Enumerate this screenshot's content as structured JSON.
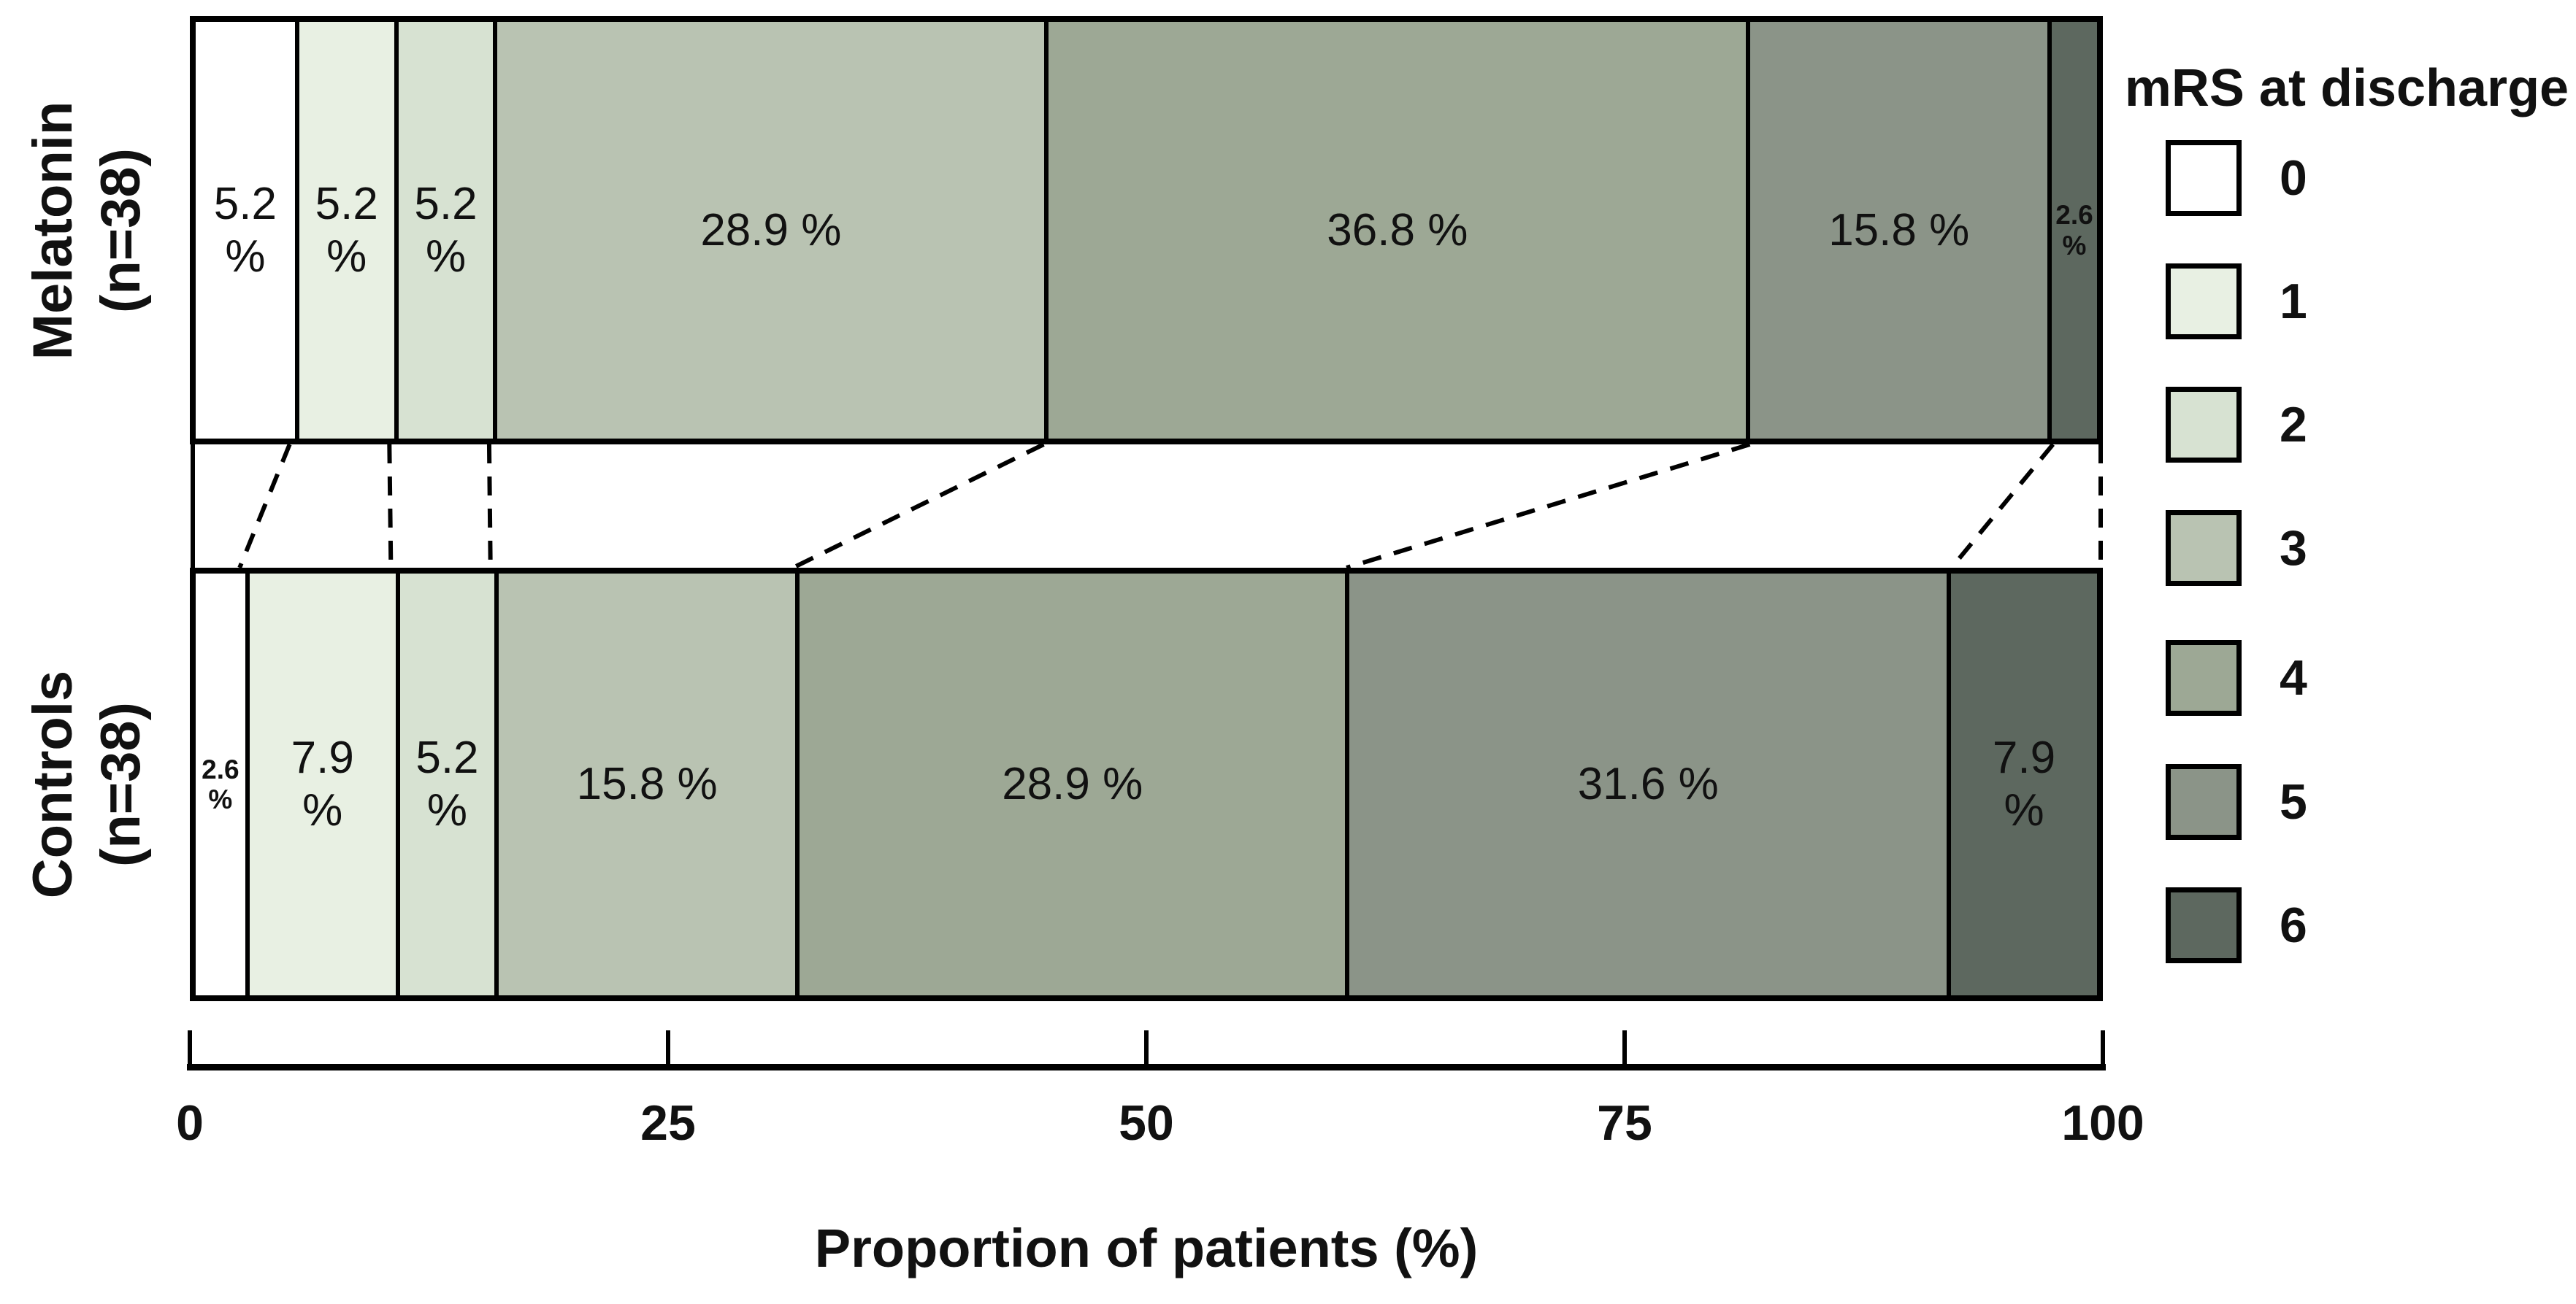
{
  "legend": {
    "title": "mRS at discharge",
    "items": [
      {
        "label": "0",
        "color": "#ffffff"
      },
      {
        "label": "1",
        "color": "#e8f0e3"
      },
      {
        "label": "2",
        "color": "#d7e2d2"
      },
      {
        "label": "3",
        "color": "#b9c3b2"
      },
      {
        "label": "4",
        "color": "#9da895"
      },
      {
        "label": "5",
        "color": "#8b9488"
      },
      {
        "label": "6",
        "color": "#5d685f"
      }
    ]
  },
  "axis": {
    "label": "Proportion of patients (%)",
    "ticks": [
      "0",
      "25",
      "50",
      "75",
      "100"
    ],
    "tick_values": [
      0,
      25,
      50,
      75,
      100
    ]
  },
  "chart_data": {
    "type": "bar",
    "orientation": "horizontal",
    "stacked": true,
    "categories": [
      "0",
      "1",
      "2",
      "3",
      "4",
      "5",
      "6"
    ],
    "colors": [
      "#ffffff",
      "#e8f0e3",
      "#d7e2d2",
      "#b9c3b2",
      "#9da895",
      "#8b9488",
      "#5d685f"
    ],
    "unit": "%",
    "xlim": [
      0,
      100
    ],
    "x_ticks": [
      0,
      25,
      50,
      75,
      100
    ],
    "xlabel": "Proportion of patients (%)",
    "legend_title": "mRS at discharge",
    "legend_position": "right",
    "series": [
      {
        "name": "Melatonin (n=38)",
        "values": [
          5.2,
          5.2,
          5.2,
          28.9,
          36.8,
          15.8,
          2.6
        ]
      },
      {
        "name": "Controls (n=38)",
        "values": [
          2.6,
          7.9,
          5.2,
          15.8,
          28.9,
          31.6,
          7.9
        ]
      }
    ],
    "connectors": "dashed lines link segment boundaries of the two bars"
  },
  "groups": [
    {
      "name": "melatonin",
      "label_lines": [
        "Melatonin",
        "(n=38)"
      ],
      "segments": [
        {
          "category": "0",
          "value": 5.2,
          "label_lines": [
            "5.2",
            "%"
          ],
          "size": "normal"
        },
        {
          "category": "1",
          "value": 5.2,
          "label_lines": [
            "5.2",
            "%"
          ],
          "size": "normal"
        },
        {
          "category": "2",
          "value": 5.2,
          "label_lines": [
            "5.2",
            "%"
          ],
          "size": "normal"
        },
        {
          "category": "3",
          "value": 28.9,
          "label_lines": [
            "28.9 %"
          ],
          "size": "wide"
        },
        {
          "category": "4",
          "value": 36.8,
          "label_lines": [
            "36.8 %"
          ],
          "size": "wide"
        },
        {
          "category": "5",
          "value": 15.8,
          "label_lines": [
            "15.8 %"
          ],
          "size": "wide"
        },
        {
          "category": "6",
          "value": 2.6,
          "label_lines": [
            "2.6",
            "%"
          ],
          "size": "small"
        }
      ]
    },
    {
      "name": "controls",
      "label_lines": [
        "Controls",
        "(n=38)"
      ],
      "segments": [
        {
          "category": "0",
          "value": 2.6,
          "label_lines": [
            "2.6",
            "%"
          ],
          "size": "small"
        },
        {
          "category": "1",
          "value": 7.9,
          "label_lines": [
            "7.9",
            "%"
          ],
          "size": "normal"
        },
        {
          "category": "2",
          "value": 5.2,
          "label_lines": [
            "5.2",
            "%"
          ],
          "size": "normal"
        },
        {
          "category": "3",
          "value": 15.8,
          "label_lines": [
            "15.8 %"
          ],
          "size": "wide"
        },
        {
          "category": "4",
          "value": 28.9,
          "label_lines": [
            "28.9 %"
          ],
          "size": "wide"
        },
        {
          "category": "5",
          "value": 31.6,
          "label_lines": [
            "31.6 %"
          ],
          "size": "wide"
        },
        {
          "category": "6",
          "value": 7.9,
          "label_lines": [
            "7.9",
            "%"
          ],
          "size": "normal"
        }
      ]
    }
  ]
}
